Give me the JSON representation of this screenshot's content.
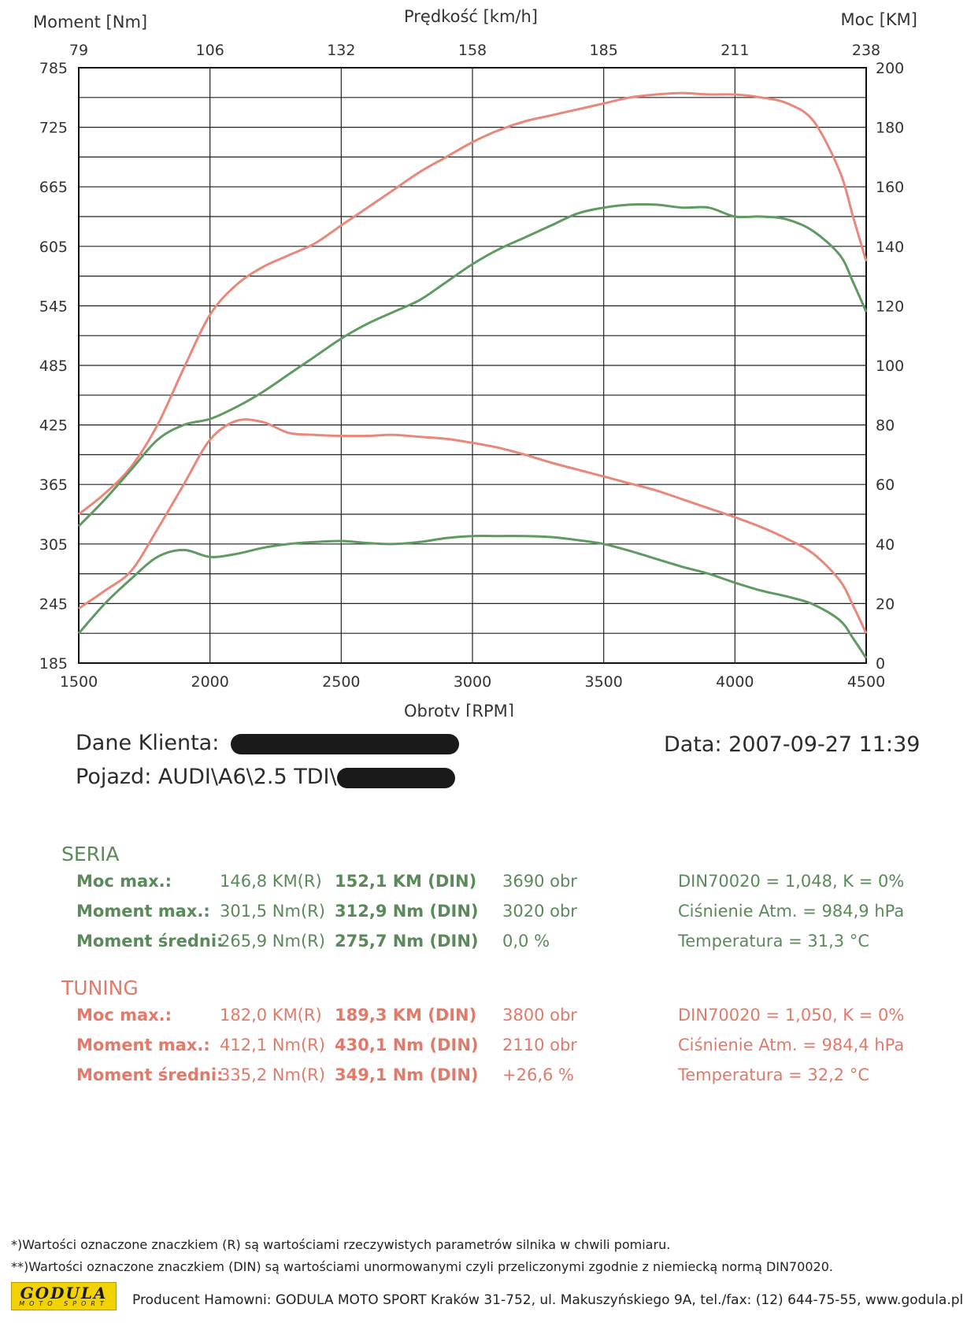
{
  "chart_data": {
    "type": "line",
    "title": "Prędkość [km/h]",
    "xlabel": "Obroty [RPM]",
    "ylabel_left": "Moment [Nm]",
    "ylabel_right": "Moc [KM]",
    "xlim": [
      1500,
      4500
    ],
    "ylim_left": [
      185,
      785
    ],
    "ylim_right": [
      0,
      200
    ],
    "x_ticks": [
      1500,
      2000,
      2500,
      3000,
      3500,
      4000,
      4500
    ],
    "top_ticks": [
      "79",
      "106",
      "132",
      "158",
      "185",
      "211",
      "238"
    ],
    "left_ticks": [
      185,
      245,
      305,
      365,
      425,
      485,
      545,
      605,
      665,
      725,
      785
    ],
    "right_ticks": [
      0,
      20,
      40,
      60,
      80,
      100,
      120,
      140,
      160,
      180,
      200
    ],
    "grid": true,
    "series": [
      {
        "group": "TUNING",
        "axis": "right",
        "color": "#e8877a",
        "points": [
          [
            1500,
            50
          ],
          [
            1600,
            57
          ],
          [
            1700,
            66
          ],
          [
            1800,
            80
          ],
          [
            1900,
            99
          ],
          [
            2000,
            117
          ],
          [
            2100,
            127
          ],
          [
            2200,
            133
          ],
          [
            2300,
            137
          ],
          [
            2400,
            141
          ],
          [
            2500,
            147
          ],
          [
            2600,
            153
          ],
          [
            2700,
            159
          ],
          [
            2800,
            165
          ],
          [
            2900,
            170
          ],
          [
            3000,
            175
          ],
          [
            3100,
            179
          ],
          [
            3200,
            182
          ],
          [
            3300,
            184
          ],
          [
            3400,
            186
          ],
          [
            3500,
            188
          ],
          [
            3600,
            190
          ],
          [
            3700,
            191
          ],
          [
            3800,
            191.5
          ],
          [
            3900,
            191
          ],
          [
            4000,
            191
          ],
          [
            4100,
            190
          ],
          [
            4200,
            188
          ],
          [
            4300,
            182
          ],
          [
            4400,
            165
          ],
          [
            4450,
            150
          ],
          [
            4500,
            135
          ]
        ]
      },
      {
        "group": "SERIA",
        "axis": "right",
        "color": "#5e9a62",
        "points": [
          [
            1500,
            46
          ],
          [
            1600,
            55
          ],
          [
            1700,
            65
          ],
          [
            1800,
            75
          ],
          [
            1900,
            80
          ],
          [
            2000,
            82
          ],
          [
            2100,
            86
          ],
          [
            2200,
            91
          ],
          [
            2300,
            97
          ],
          [
            2400,
            103
          ],
          [
            2500,
            109
          ],
          [
            2600,
            114
          ],
          [
            2700,
            118
          ],
          [
            2800,
            122
          ],
          [
            2900,
            128
          ],
          [
            3000,
            134
          ],
          [
            3100,
            139
          ],
          [
            3200,
            143
          ],
          [
            3300,
            147
          ],
          [
            3400,
            151
          ],
          [
            3500,
            153
          ],
          [
            3600,
            154
          ],
          [
            3700,
            154
          ],
          [
            3800,
            153
          ],
          [
            3900,
            153
          ],
          [
            4000,
            150
          ],
          [
            4100,
            150
          ],
          [
            4200,
            149
          ],
          [
            4300,
            145
          ],
          [
            4400,
            137
          ],
          [
            4450,
            128
          ],
          [
            4500,
            118
          ]
        ]
      },
      {
        "group": "TUNING",
        "axis": "left",
        "color": "#e8877a",
        "points": [
          [
            1500,
            240
          ],
          [
            1600,
            258
          ],
          [
            1700,
            278
          ],
          [
            1800,
            320
          ],
          [
            1900,
            365
          ],
          [
            2000,
            410
          ],
          [
            2100,
            429
          ],
          [
            2200,
            428
          ],
          [
            2300,
            417
          ],
          [
            2400,
            415
          ],
          [
            2500,
            414
          ],
          [
            2600,
            414
          ],
          [
            2700,
            415
          ],
          [
            2800,
            413
          ],
          [
            2900,
            411
          ],
          [
            3000,
            407
          ],
          [
            3100,
            402
          ],
          [
            3200,
            395
          ],
          [
            3300,
            387
          ],
          [
            3400,
            380
          ],
          [
            3500,
            373
          ],
          [
            3600,
            366
          ],
          [
            3700,
            359
          ],
          [
            3800,
            350
          ],
          [
            3900,
            341
          ],
          [
            4000,
            332
          ],
          [
            4100,
            322
          ],
          [
            4200,
            310
          ],
          [
            4300,
            295
          ],
          [
            4400,
            268
          ],
          [
            4450,
            243
          ],
          [
            4500,
            215
          ]
        ]
      },
      {
        "group": "SERIA",
        "axis": "left",
        "color": "#5e9a62",
        "points": [
          [
            1500,
            215
          ],
          [
            1600,
            245
          ],
          [
            1700,
            270
          ],
          [
            1800,
            292
          ],
          [
            1900,
            299
          ],
          [
            2000,
            292
          ],
          [
            2100,
            295
          ],
          [
            2200,
            301
          ],
          [
            2300,
            305
          ],
          [
            2400,
            307
          ],
          [
            2500,
            308
          ],
          [
            2600,
            306
          ],
          [
            2700,
            305
          ],
          [
            2800,
            307
          ],
          [
            2900,
            311
          ],
          [
            3000,
            313
          ],
          [
            3100,
            313
          ],
          [
            3200,
            313
          ],
          [
            3300,
            312
          ],
          [
            3400,
            309
          ],
          [
            3500,
            305
          ],
          [
            3600,
            298
          ],
          [
            3700,
            290
          ],
          [
            3800,
            282
          ],
          [
            3900,
            275
          ],
          [
            4000,
            266
          ],
          [
            4100,
            258
          ],
          [
            4200,
            252
          ],
          [
            4300,
            244
          ],
          [
            4400,
            228
          ],
          [
            4450,
            210
          ],
          [
            4500,
            190
          ]
        ]
      }
    ]
  },
  "client": {
    "label": "Dane Klienta:",
    "vehicle_label": "Pojazd:",
    "vehicle_value": "AUDI\\A6\\2.5 TDI\\",
    "date": "Data: 2007-09-27  11:39"
  },
  "colors": {
    "seria": "#5a8a5a",
    "tuning": "#e07a6a"
  },
  "seria": {
    "title": "SERIA",
    "rows": [
      {
        "label": "Moc max.:",
        "r": "146,8 KM(R)",
        "din": "152,1 KM (DIN)",
        "extra": "3690 obr",
        "right": "DIN70020 = 1,048, K = 0%"
      },
      {
        "label": "Moment max.:",
        "r": "301,5 Nm(R)",
        "din": "312,9 Nm (DIN)",
        "extra": "3020 obr",
        "right": "Ciśnienie Atm. = 984,9 hPa"
      },
      {
        "label": "Moment średni:",
        "r": "265,9 Nm(R)",
        "din": "275,7 Nm (DIN)",
        "extra": "0,0 %",
        "right": "Temperatura = 31,3 °C"
      }
    ]
  },
  "tuning": {
    "title": "TUNING",
    "rows": [
      {
        "label": "Moc max.:",
        "r": "182,0 KM(R)",
        "din": "189,3 KM (DIN)",
        "extra": "3800 obr",
        "right": "DIN70020 = 1,050, K = 0%"
      },
      {
        "label": "Moment max.:",
        "r": "412,1 Nm(R)",
        "din": "430,1 Nm (DIN)",
        "extra": "2110 obr",
        "right": "Ciśnienie Atm. = 984,4 hPa"
      },
      {
        "label": "Moment średni:",
        "r": "335,2 Nm(R)",
        "din": "349,1 Nm (DIN)",
        "extra": "+26,6 %",
        "right": "Temperatura = 32,2 °C"
      }
    ]
  },
  "footer": {
    "note1": "*)Wartości oznaczone znaczkiem (R) są wartościami rzeczywistych parametrów silnika w chwili pomiaru.",
    "note2": "**)Wartości oznaczone znaczkiem (DIN) są wartościami unormowanymi czyli przeliczonymi zgodnie z niemiecką normą DIN70020.",
    "logo_text": "GODULA",
    "logo_sub": "MOTO SPORT",
    "producer": "Producent Hamowni: GODULA MOTO SPORT Kraków 31-752, ul. Makuszyńskiego 9A, tel./fax: (12) 644-75-55, www.godula.pl"
  }
}
